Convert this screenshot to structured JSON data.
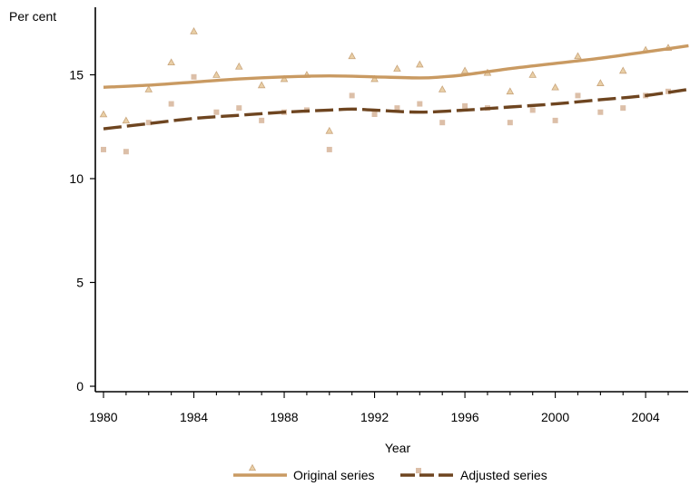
{
  "chart_data": {
    "type": "line",
    "ylabel": "Per cent",
    "xlabel": "Year",
    "xlim": [
      1980,
      2005.9
    ],
    "ylim": [
      0,
      18.2
    ],
    "xticks": [
      1980,
      1984,
      1988,
      1992,
      1996,
      2000,
      2004
    ],
    "xtick_labels": [
      "1980",
      "1984",
      "1988",
      "1992",
      "1996",
      "2000",
      "2004"
    ],
    "yticks": [
      0,
      5,
      10,
      15
    ],
    "ytick_labels": [
      "0",
      "5",
      "10",
      "15"
    ],
    "grid": false,
    "legend": "bottom-center",
    "series": [
      {
        "name": "Original series",
        "color": "#c99a62",
        "marker": "triangle",
        "marker_color": "#e9cfa6",
        "line_style": "solid",
        "points_x": [
          1980,
          1981,
          1982,
          1983,
          1984,
          1985,
          1986,
          1987,
          1988,
          1989,
          1990,
          1991,
          1992,
          1993,
          1994,
          1995,
          1996,
          1997,
          1998,
          1999,
          2000,
          2001,
          2002,
          2003,
          2004,
          2005
        ],
        "points_y": [
          13.1,
          12.8,
          14.3,
          15.6,
          17.1,
          15.0,
          15.4,
          14.5,
          14.8,
          15.0,
          12.3,
          15.9,
          14.8,
          15.3,
          15.5,
          14.3,
          15.2,
          15.1,
          14.2,
          15.0,
          14.4,
          15.9,
          14.6,
          15.2,
          16.2,
          16.3
        ],
        "trend_x": [
          1980,
          1982,
          1984,
          1986,
          1988,
          1990,
          1992,
          1994,
          1995,
          1996,
          1998,
          2000,
          2002,
          2004,
          2005.9
        ],
        "trend_y": [
          14.4,
          14.5,
          14.65,
          14.8,
          14.9,
          14.95,
          14.9,
          14.85,
          14.9,
          15.0,
          15.3,
          15.55,
          15.8,
          16.1,
          16.4
        ]
      },
      {
        "name": "Adjusted series",
        "color": "#6e4520",
        "marker": "square",
        "marker_color": "#dcbfa8",
        "line_style": "dashed",
        "points_x": [
          1980,
          1981,
          1982,
          1983,
          1984,
          1985,
          1986,
          1987,
          1988,
          1989,
          1990,
          1991,
          1992,
          1993,
          1994,
          1995,
          1996,
          1997,
          1998,
          1999,
          2000,
          2001,
          2002,
          2003,
          2004,
          2005
        ],
        "points_y": [
          11.4,
          11.3,
          12.7,
          13.6,
          14.9,
          13.2,
          13.4,
          12.8,
          13.2,
          13.3,
          11.4,
          14.0,
          13.1,
          13.4,
          13.6,
          12.7,
          13.5,
          13.4,
          12.7,
          13.3,
          12.8,
          14.0,
          13.2,
          13.4,
          14.0,
          14.2
        ],
        "trend_x": [
          1980,
          1982,
          1984,
          1986,
          1988,
          1990,
          1991,
          1992,
          1994,
          1996,
          1998,
          2000,
          2002,
          2004,
          2005.9
        ],
        "trend_y": [
          12.4,
          12.65,
          12.9,
          13.05,
          13.2,
          13.3,
          13.35,
          13.3,
          13.2,
          13.3,
          13.45,
          13.6,
          13.8,
          14.0,
          14.3
        ]
      }
    ]
  }
}
